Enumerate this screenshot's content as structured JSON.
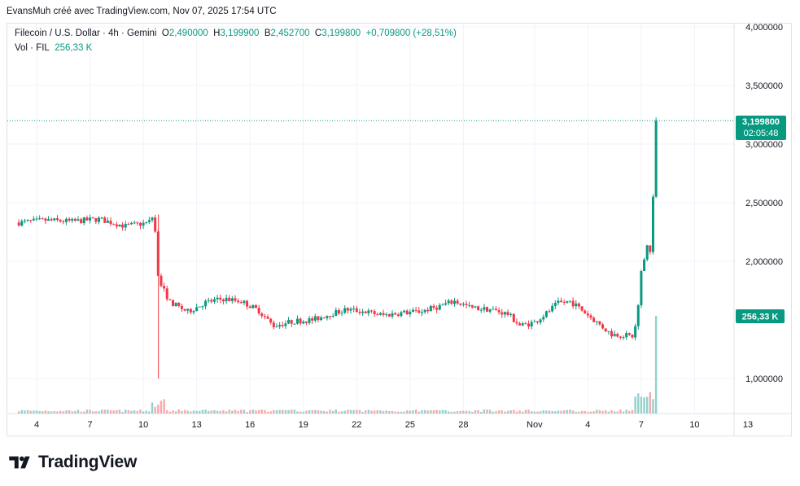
{
  "header": {
    "text": "EvansMuh créé avec TradingView.com, Nov 07, 2025 17:54 UTC"
  },
  "legend": {
    "symbol": "Filecoin / U.S. Dollar · 4h · Gemini",
    "o_label": "O",
    "o_val": "2,490000",
    "h_label": "H",
    "h_val": "3,199900",
    "b_label": "B",
    "b_val": "2,452700",
    "c_label": "C",
    "c_val": "3,199800",
    "change": "+0,709800 (+28,51%)",
    "vol_label": "Vol · FIL",
    "vol_val": "256,33 K"
  },
  "brand": {
    "name": "TradingView"
  },
  "colors": {
    "up": "#089981",
    "down": "#f23645",
    "up_vol": "#92d2cc",
    "down_vol": "#f7a9a7",
    "grid": "#f0f3fa",
    "axis_text": "#131722"
  },
  "chart_data": {
    "type": "candlestick",
    "interval": "4h",
    "symbol": "FIL/USD",
    "y_ticks": [
      1.0,
      2.0,
      2.5,
      3.0,
      3.5,
      4.0
    ],
    "y_tick_labels": [
      "1,000000",
      "2,000000",
      "2,500000",
      "3,000000",
      "3,500000",
      "4,000000"
    ],
    "ylim": [
      0.75,
      4.05
    ],
    "x_ticks": [
      {
        "label": "4",
        "day": 4
      },
      {
        "label": "7",
        "day": 7
      },
      {
        "label": "10",
        "day": 10
      },
      {
        "label": "13",
        "day": 13
      },
      {
        "label": "16",
        "day": 16
      },
      {
        "label": "19",
        "day": 19
      },
      {
        "label": "22",
        "day": 22
      },
      {
        "label": "25",
        "day": 25
      },
      {
        "label": "28",
        "day": 28
      },
      {
        "label": "Nov",
        "day": 32
      },
      {
        "label": "4",
        "day": 35
      },
      {
        "label": "7",
        "day": 38
      },
      {
        "label": "10",
        "day": 41
      },
      {
        "label": "13",
        "day": 44
      }
    ],
    "price_anchors": [
      [
        3.0,
        2.33
      ],
      [
        4.5,
        2.35
      ],
      [
        6.0,
        2.34
      ],
      [
        7.5,
        2.36
      ],
      [
        9.0,
        2.3
      ],
      [
        10.3,
        2.33
      ],
      [
        10.6,
        2.4
      ],
      [
        10.85,
        1.85
      ],
      [
        11.5,
        1.65
      ],
      [
        12.5,
        1.57
      ],
      [
        13.5,
        1.65
      ],
      [
        14.5,
        1.68
      ],
      [
        15.5,
        1.66
      ],
      [
        16.5,
        1.58
      ],
      [
        17.3,
        1.45
      ],
      [
        18.5,
        1.49
      ],
      [
        19.5,
        1.5
      ],
      [
        20.5,
        1.55
      ],
      [
        21.5,
        1.59
      ],
      [
        22.5,
        1.57
      ],
      [
        23.5,
        1.54
      ],
      [
        24.5,
        1.56
      ],
      [
        25.5,
        1.57
      ],
      [
        26.5,
        1.61
      ],
      [
        27.5,
        1.66
      ],
      [
        28.5,
        1.6
      ],
      [
        29.5,
        1.59
      ],
      [
        30.5,
        1.55
      ],
      [
        31.2,
        1.45
      ],
      [
        32.0,
        1.48
      ],
      [
        32.7,
        1.56
      ],
      [
        33.3,
        1.64
      ],
      [
        34.0,
        1.66
      ],
      [
        34.7,
        1.58
      ],
      [
        35.5,
        1.48
      ],
      [
        36.3,
        1.38
      ],
      [
        37.0,
        1.37
      ],
      [
        37.6,
        1.36
      ],
      [
        37.8,
        1.6
      ],
      [
        38.0,
        1.9
      ],
      [
        38.3,
        2.15
      ],
      [
        38.5,
        2.1
      ],
      [
        38.65,
        2.45
      ],
      [
        38.8,
        3.1998
      ]
    ],
    "last_price": "3,199800",
    "last_price_value": 3.1998,
    "countdown": "02:05:48",
    "last_volume": "256,33 K"
  }
}
